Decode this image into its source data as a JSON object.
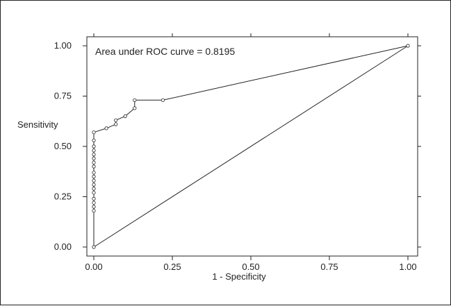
{
  "chart_data": {
    "type": "line",
    "title": "",
    "xlabel": "1 - Specificity",
    "ylabel": "Sensitivity",
    "xlim": [
      0,
      1
    ],
    "ylim": [
      0,
      1
    ],
    "x_ticks": [
      "0.00",
      "0.25",
      "0.50",
      "0.75",
      "1.00"
    ],
    "y_ticks": [
      "0.00",
      "0.25",
      "0.50",
      "0.75",
      "1.00"
    ],
    "annotation": "Area under ROC curve = 0.8195",
    "grid": false,
    "legend": "none",
    "series": [
      {
        "type": "roc-curve",
        "markers": true,
        "points": [
          [
            0.0,
            0.0
          ],
          [
            0.0,
            0.18
          ],
          [
            0.0,
            0.2
          ],
          [
            0.0,
            0.22
          ],
          [
            0.0,
            0.24
          ],
          [
            0.0,
            0.27
          ],
          [
            0.0,
            0.29
          ],
          [
            0.0,
            0.31
          ],
          [
            0.0,
            0.33
          ],
          [
            0.0,
            0.35
          ],
          [
            0.0,
            0.37
          ],
          [
            0.0,
            0.4
          ],
          [
            0.0,
            0.42
          ],
          [
            0.0,
            0.44
          ],
          [
            0.0,
            0.46
          ],
          [
            0.0,
            0.48
          ],
          [
            0.0,
            0.5
          ],
          [
            0.0,
            0.53
          ],
          [
            0.0,
            0.57
          ],
          [
            0.04,
            0.59
          ],
          [
            0.07,
            0.61
          ],
          [
            0.07,
            0.63
          ],
          [
            0.1,
            0.65
          ],
          [
            0.13,
            0.69
          ],
          [
            0.13,
            0.73
          ],
          [
            0.22,
            0.73
          ],
          [
            1.0,
            1.0
          ]
        ]
      },
      {
        "type": "reference-diagonal",
        "markers": false,
        "points": [
          [
            0.0,
            0.0
          ],
          [
            1.0,
            1.0
          ]
        ]
      }
    ]
  }
}
